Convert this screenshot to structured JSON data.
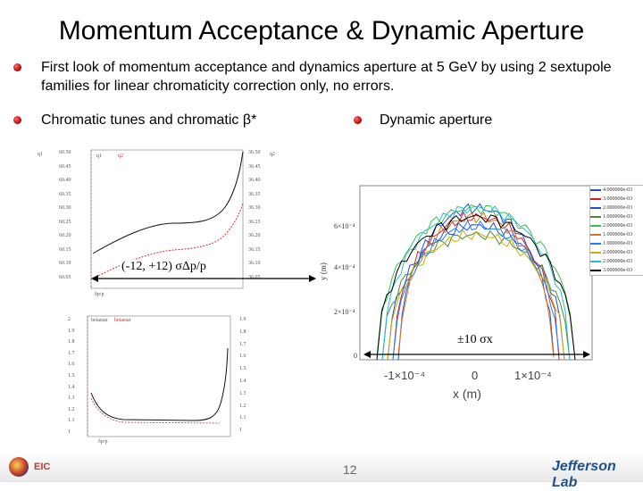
{
  "slide": {
    "title": "Momentum Acceptance & Dynamic Aperture",
    "bullet1": "First look of momentum acceptance and dynamics aperture at 5 GeV by using 2 sextupole families for linear chromaticity correction only, no errors.",
    "bullet2": "Chromatic tunes and chromatic β*",
    "bullet3": "Dynamic aperture",
    "page_number": "12",
    "footer_logo_text": "Jefferson Lab",
    "footer_left_logo_text": "EIC",
    "colors": {
      "bullet": "#b00000",
      "title": "#000000",
      "footer_text": "#1f4f8f"
    }
  },
  "tune_plot": {
    "left_ticks": [
      "60.50",
      "60.45",
      "60.40",
      "60.35",
      "60.30",
      "60.25",
      "60.20",
      "60.15",
      "60.10",
      "60.05"
    ],
    "right_ticks": [
      "36.50",
      "36.45",
      "36.40",
      "36.35",
      "36.30",
      "36.25",
      "36.20",
      "36.15",
      "36.10",
      "36.05"
    ],
    "legend": [
      "q1",
      "q2"
    ],
    "axis_label_y_left": "q1",
    "axis_label_y_right": "q2",
    "axis_label_x": "δp/p",
    "annotation": "(-12, +12) σΔp/p"
  },
  "beta_plot": {
    "legend": [
      "betastar",
      "betastar"
    ],
    "axis_label_x": "δp/p",
    "left_ticks": [
      "2",
      "1.9",
      "1.8",
      "1.7",
      "1.6",
      "1.5",
      "1.4",
      "1.3",
      "1.2",
      "1.1",
      "1"
    ],
    "right_ticks": [
      "1.9",
      "1.8",
      "1.7",
      "1.6",
      "1.5",
      "1.4",
      "1.3",
      "1.2",
      "1.1",
      "1"
    ]
  },
  "da_plot": {
    "y_ticks": [
      "6×10⁻⁴",
      "4×10⁻⁴",
      "2×10⁻⁴",
      "0"
    ],
    "x_ticks": [
      "-1×10⁻⁴",
      "0",
      "1×10⁻⁴"
    ],
    "xlabel": "x (m)",
    "ylabel": "y (m)",
    "annotation": "±10 σx",
    "legend": [
      "4.000000e-03",
      "3.000000e-03",
      "2.000000e-03",
      "1.000000e-03",
      "2.000000e-03",
      "1.000000e-03",
      "1.000000e-03",
      "2.000000e-03",
      "2.000000e-03",
      "3.000000e-03"
    ],
    "series_colors": [
      "#1f4fd6",
      "#d62020",
      "#1f4fd6",
      "#4b8a3c",
      "#3cc04a",
      "#e07020",
      "#2080ff",
      "#c9b000",
      "#20c0d0",
      "#000000"
    ]
  }
}
